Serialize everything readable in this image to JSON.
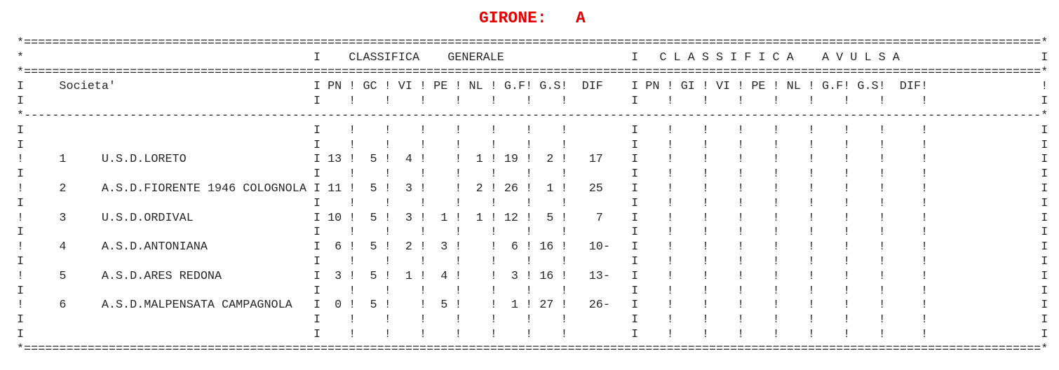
{
  "title": {
    "text": "GIRONE:   A",
    "color": "#e10000"
  },
  "sections": {
    "generale": "CLASSIFICA    GENERALE",
    "avulsa": "C L A S S I F I C A    A V U L S A"
  },
  "table": {
    "societa_label": "Societa'",
    "columns_generale": [
      "PN",
      "GC",
      "VI",
      "PE",
      "NL",
      "G.F",
      "G.S",
      "DIF"
    ],
    "columns_avulsa": [
      "PN",
      "GI",
      "VI",
      "PE",
      "NL",
      "G.F",
      "G.S",
      "DIF"
    ],
    "teams": [
      {
        "rank": "1",
        "name": "U.S.D.LORETO",
        "pn": "13",
        "gc": "5",
        "vi": "4",
        "pe": "",
        "nl": "1",
        "gf": "19",
        "gs": "2",
        "dif": "17"
      },
      {
        "rank": "2",
        "name": "A.S.D.FIORENTE 1946 COLOGNOLA",
        "pn": "11",
        "gc": "5",
        "vi": "3",
        "pe": "",
        "nl": "2",
        "gf": "26",
        "gs": "1",
        "dif": "25"
      },
      {
        "rank": "3",
        "name": "U.S.D.ORDIVAL",
        "pn": "10",
        "gc": "5",
        "vi": "3",
        "pe": "1",
        "nl": "1",
        "gf": "12",
        "gs": "5",
        "dif": "7"
      },
      {
        "rank": "4",
        "name": "A.S.D.ANTONIANA",
        "pn": "6",
        "gc": "5",
        "vi": "2",
        "pe": "3",
        "nl": "",
        "gf": "6",
        "gs": "16",
        "dif": "10-"
      },
      {
        "rank": "5",
        "name": "A.S.D.ARES REDONA",
        "pn": "3",
        "gc": "5",
        "vi": "1",
        "pe": "4",
        "nl": "",
        "gf": "3",
        "gs": "16",
        "dif": "13-"
      },
      {
        "rank": "6",
        "name": "A.S.D.MALPENSATA CAMPAGNOLA",
        "pn": "0",
        "gc": "5",
        "vi": "",
        "pe": "5",
        "nl": "",
        "gf": "1",
        "gs": "27",
        "dif": "26-"
      }
    ]
  }
}
